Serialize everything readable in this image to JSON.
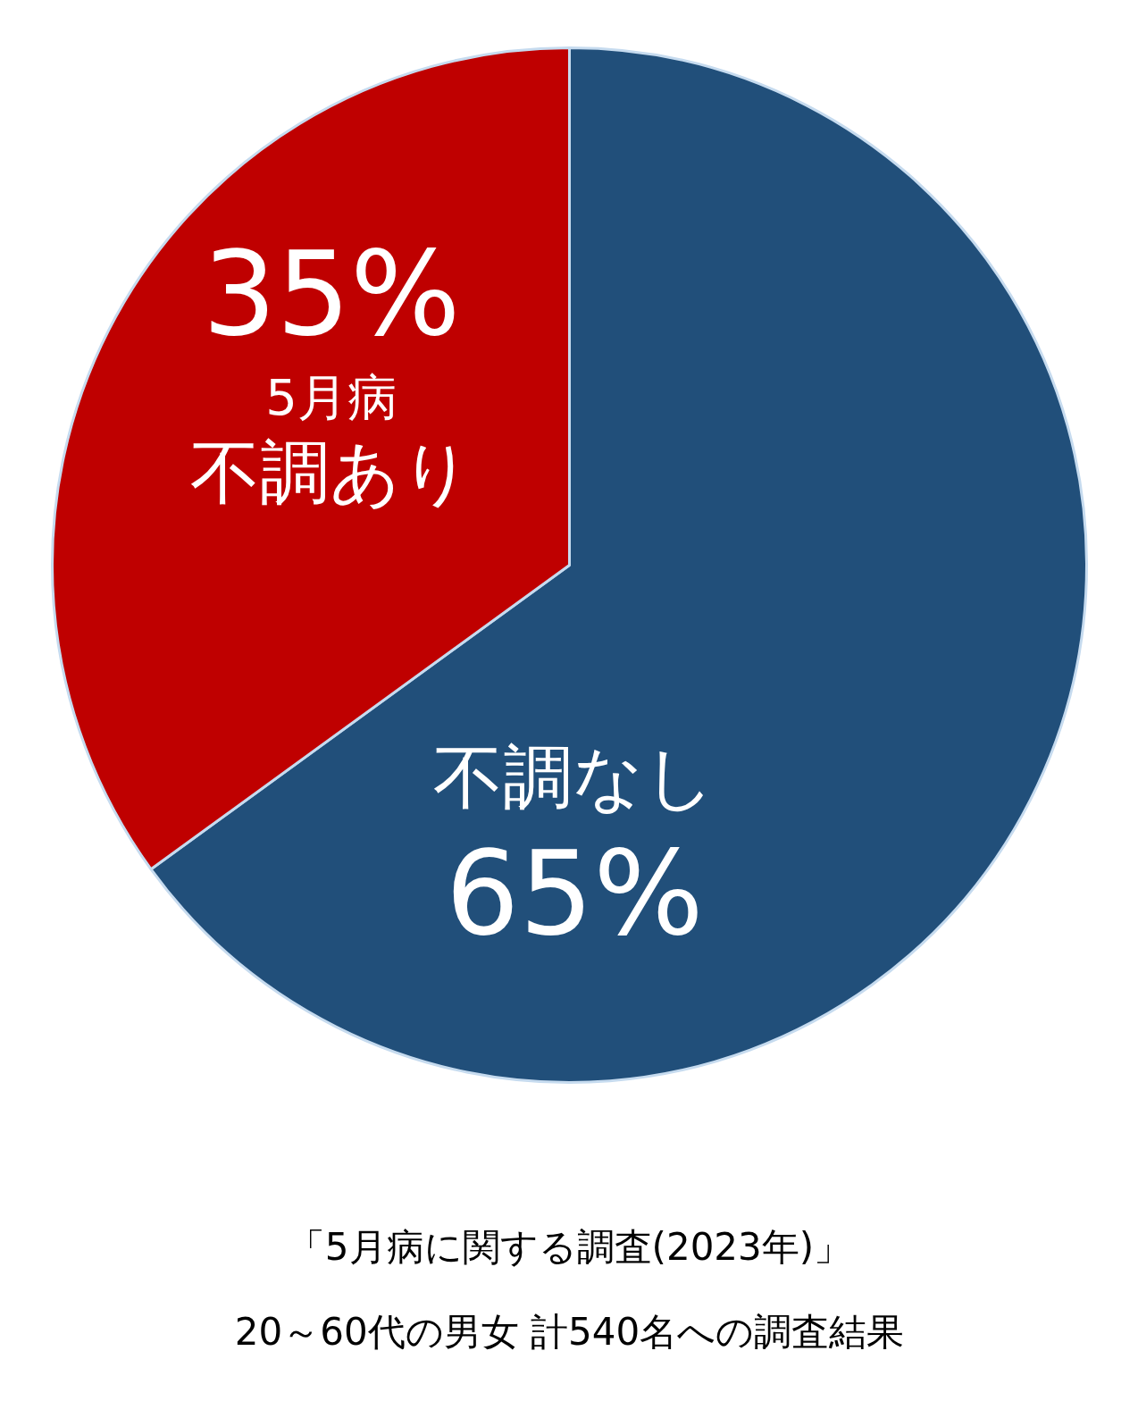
{
  "chart_data": {
    "type": "pie",
    "categories": [
      "不調なし",
      "5月病不調あり"
    ],
    "values": [
      65,
      35
    ],
    "colors": [
      "#214f7a",
      "#bf0000"
    ],
    "value_labels": [
      "65%",
      "35%"
    ],
    "annotations": [
      "「5月病に関する調査(2023年)」",
      "20～60代の男女 計540名への調査結果"
    ]
  }
}
